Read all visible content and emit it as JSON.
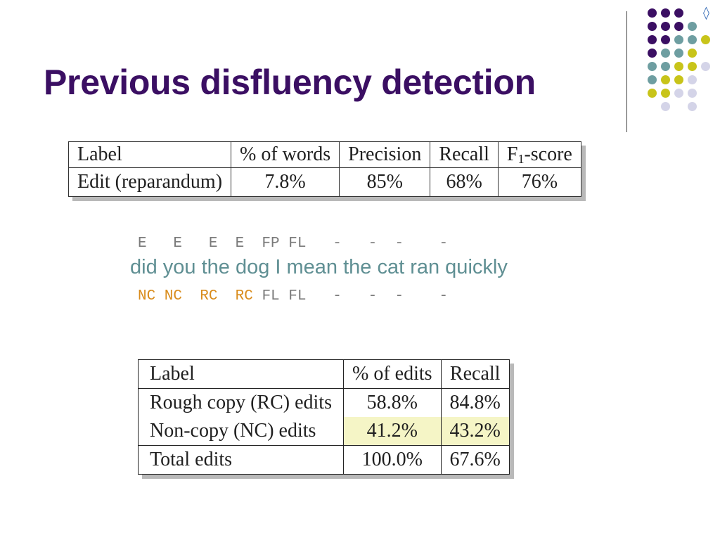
{
  "slide": {
    "title": "Previous disfluency detection",
    "nav_glyph": "◊",
    "decoration": {
      "dot_rows": [
        [
          "",
          "#3b0f63",
          "#3b0f63",
          "#3b0f63",
          "",
          ""
        ],
        [
          "",
          "#3b0f63",
          "#3b0f63",
          "#3b0f63",
          "#6e9ea1",
          ""
        ],
        [
          "",
          "#3b0f63",
          "#3b0f63",
          "#6e9ea1",
          "#6e9ea1",
          "#c8c41a"
        ],
        [
          "",
          "#3b0f63",
          "#6e9ea1",
          "#6e9ea1",
          "#c8c41a",
          ""
        ],
        [
          "",
          "#6e9ea1",
          "#6e9ea1",
          "#c8c41a",
          "#c8c41a",
          "#d4d4e8"
        ],
        [
          "",
          "#6e9ea1",
          "#c8c41a",
          "#c8c41a",
          "#d4d4e8",
          ""
        ],
        [
          "",
          "#c8c41a",
          "#c8c41a",
          "#d4d4e8",
          "#d4d4e8",
          ""
        ],
        [
          "",
          "",
          "#d4d4e8",
          "",
          "#d4d4e8",
          ""
        ]
      ]
    }
  },
  "table1": {
    "headers": {
      "label": "Label",
      "pct_words": "% of words",
      "precision": "Precision",
      "recall": "Recall",
      "f1_main": "F",
      "f1_sub": "1",
      "f1_rest": "-score"
    },
    "row": {
      "label": "Edit (reparandum)",
      "pct_words": "7.8%",
      "precision": "85%",
      "recall": "68%",
      "f1": "76%"
    }
  },
  "example": {
    "top_tags": "E   E   E  E  FP FL   -   -  -    -",
    "sentence": "did you the dog I mean the cat ran quickly",
    "bottom_tags": [
      {
        "text": "NC NC  RC  RC ",
        "color": "orange"
      },
      {
        "text": "FL FL   -   -  -    -",
        "color": "gray"
      }
    ]
  },
  "table2": {
    "headers": {
      "label": "Label",
      "pct_edits": "% of edits",
      "recall": "Recall"
    },
    "rows": [
      {
        "label": "Rough copy (RC) edits",
        "pct_edits": "58.8%",
        "recall": "84.8%"
      },
      {
        "label": "Non-copy (NC) edits",
        "pct_edits": "41.2%",
        "recall": "43.2%"
      }
    ],
    "total": {
      "label": "Total edits",
      "pct_edits": "100.0%",
      "recall": "67.6%"
    },
    "highlight_color": "#f5f5c6"
  }
}
